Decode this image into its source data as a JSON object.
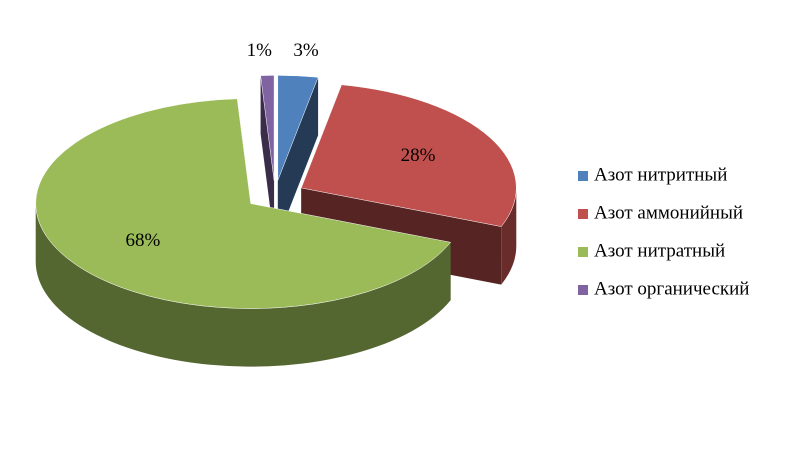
{
  "chart_data": {
    "type": "pie3d",
    "categories": [
      "Азот нитритный",
      "Азот аммонийный",
      "Азот нитратный",
      "Азот органический"
    ],
    "values": [
      3,
      28,
      68,
      1
    ],
    "value_labels": [
      "3%",
      "28%",
      "68%",
      "1%"
    ],
    "colors": [
      "#4f81bd",
      "#c0504d",
      "#9bbb59",
      "#8064a2"
    ],
    "legend": "right"
  }
}
